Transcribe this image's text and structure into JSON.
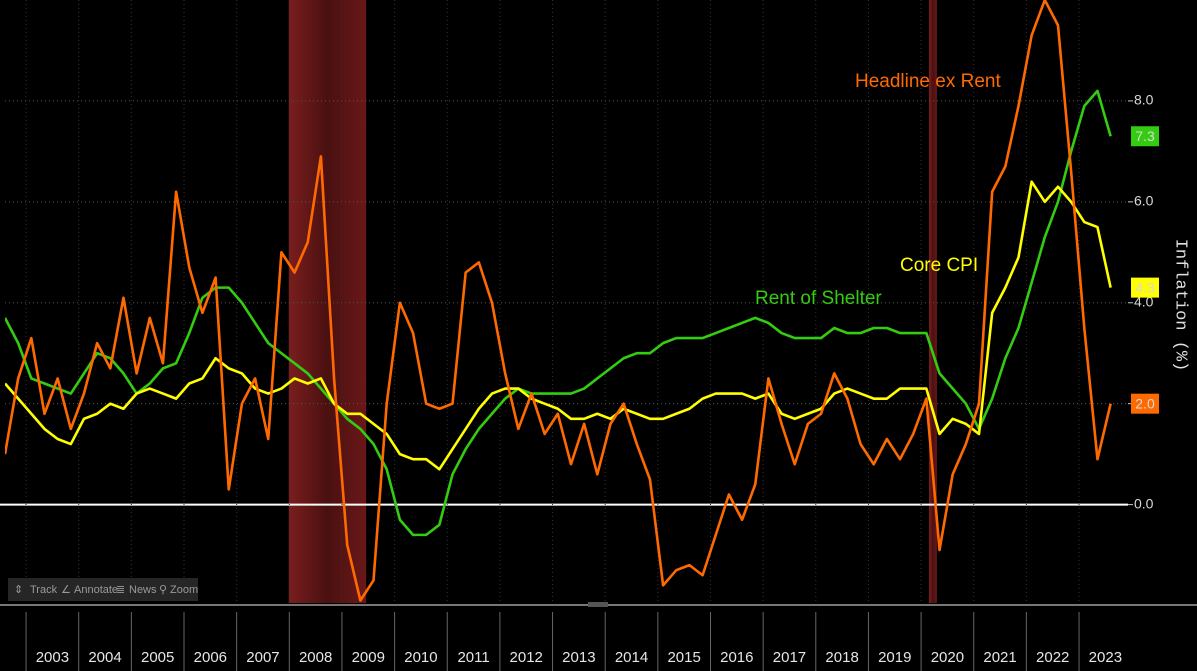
{
  "chart_data": {
    "type": "line",
    "y_axis_label": "Inflation (%)",
    "x": [
      2002.6,
      2002.85,
      2003.1,
      2003.35,
      2003.6,
      2003.85,
      2004.1,
      2004.35,
      2004.6,
      2004.85,
      2005.1,
      2005.35,
      2005.6,
      2005.85,
      2006.1,
      2006.35,
      2006.6,
      2006.85,
      2007.1,
      2007.35,
      2007.6,
      2007.85,
      2008.1,
      2008.35,
      2008.6,
      2008.85,
      2009.1,
      2009.35,
      2009.6,
      2009.85,
      2010.1,
      2010.35,
      2010.6,
      2010.85,
      2011.1,
      2011.35,
      2011.6,
      2011.85,
      2012.1,
      2012.35,
      2012.6,
      2012.85,
      2013.1,
      2013.35,
      2013.6,
      2013.85,
      2014.1,
      2014.35,
      2014.6,
      2014.85,
      2015.1,
      2015.35,
      2015.6,
      2015.85,
      2016.1,
      2016.35,
      2016.6,
      2016.85,
      2017.1,
      2017.35,
      2017.6,
      2017.85,
      2018.1,
      2018.35,
      2018.6,
      2018.85,
      2019.1,
      2019.35,
      2019.6,
      2019.85,
      2020.1,
      2020.35,
      2020.6,
      2020.85,
      2021.1,
      2021.35,
      2021.6,
      2021.85,
      2022.1,
      2022.35,
      2022.6,
      2022.85,
      2023.1,
      2023.35,
      2023.6
    ],
    "series": [
      {
        "name": "Headline ex Rent",
        "color": "#ff6a00",
        "end_label": "2.0",
        "values": [
          1.0,
          2.5,
          3.3,
          1.8,
          2.5,
          1.5,
          2.2,
          3.2,
          2.7,
          4.1,
          2.6,
          3.7,
          2.8,
          6.2,
          4.7,
          3.8,
          4.5,
          0.3,
          2.0,
          2.5,
          1.3,
          5.0,
          4.6,
          5.2,
          6.9,
          2.5,
          -0.8,
          -1.9,
          -1.5,
          2.0,
          4.0,
          3.4,
          2.0,
          1.9,
          2.0,
          4.6,
          4.8,
          4.0,
          2.6,
          1.5,
          2.2,
          1.4,
          1.8,
          0.8,
          1.6,
          0.6,
          1.6,
          2.0,
          1.2,
          0.5,
          -1.6,
          -1.3,
          -1.2,
          -1.4,
          -0.6,
          0.2,
          -0.3,
          0.4,
          2.5,
          1.6,
          0.8,
          1.6,
          1.8,
          2.6,
          2.1,
          1.2,
          0.8,
          1.3,
          0.9,
          1.4,
          2.1,
          -0.9,
          0.6,
          1.2,
          2.0,
          6.2,
          6.7,
          7.9,
          9.3,
          10.0,
          9.5,
          6.6,
          3.5,
          0.9,
          2.0
        ]
      },
      {
        "name": "Core CPI",
        "color": "#ffff00",
        "end_label": "4.3",
        "values": [
          2.4,
          2.1,
          1.8,
          1.5,
          1.3,
          1.2,
          1.7,
          1.8,
          2.0,
          1.9,
          2.2,
          2.3,
          2.2,
          2.1,
          2.4,
          2.5,
          2.9,
          2.7,
          2.6,
          2.3,
          2.2,
          2.3,
          2.5,
          2.4,
          2.5,
          2.0,
          1.8,
          1.8,
          1.6,
          1.4,
          1.0,
          0.9,
          0.9,
          0.7,
          1.1,
          1.5,
          1.9,
          2.2,
          2.3,
          2.3,
          2.1,
          2.0,
          1.9,
          1.7,
          1.7,
          1.8,
          1.7,
          1.9,
          1.8,
          1.7,
          1.7,
          1.8,
          1.9,
          2.1,
          2.2,
          2.2,
          2.2,
          2.1,
          2.2,
          1.8,
          1.7,
          1.8,
          1.9,
          2.2,
          2.3,
          2.2,
          2.1,
          2.1,
          2.3,
          2.3,
          2.3,
          1.4,
          1.7,
          1.6,
          1.4,
          3.8,
          4.3,
          4.9,
          6.4,
          6.0,
          6.3,
          6.0,
          5.6,
          5.5,
          4.3
        ]
      },
      {
        "name": "Rent of Shelter",
        "color": "#33cc11",
        "end_label": "7.3",
        "values": [
          3.7,
          3.2,
          2.5,
          2.4,
          2.3,
          2.2,
          2.6,
          3.0,
          2.9,
          2.6,
          2.2,
          2.4,
          2.7,
          2.8,
          3.4,
          4.1,
          4.3,
          4.3,
          4.0,
          3.6,
          3.2,
          3.0,
          2.8,
          2.6,
          2.3,
          2.0,
          1.7,
          1.5,
          1.2,
          0.7,
          -0.3,
          -0.6,
          -0.6,
          -0.4,
          0.6,
          1.1,
          1.5,
          1.8,
          2.1,
          2.3,
          2.2,
          2.2,
          2.2,
          2.2,
          2.3,
          2.5,
          2.7,
          2.9,
          3.0,
          3.0,
          3.2,
          3.3,
          3.3,
          3.3,
          3.4,
          3.5,
          3.6,
          3.7,
          3.6,
          3.4,
          3.3,
          3.3,
          3.3,
          3.5,
          3.4,
          3.4,
          3.5,
          3.5,
          3.4,
          3.4,
          3.4,
          2.6,
          2.3,
          2.0,
          1.5,
          2.1,
          2.9,
          3.5,
          4.4,
          5.3,
          6.0,
          7.0,
          7.9,
          8.2,
          7.3
        ]
      }
    ],
    "shaded_regions": [
      [
        2007.99,
        2009.46
      ],
      [
        2020.15,
        2020.3
      ]
    ],
    "xlim": [
      2002.6,
      2023.93
    ],
    "xticks": [
      2003,
      2004,
      2005,
      2006,
      2007,
      2008,
      2009,
      2010,
      2011,
      2012,
      2013,
      2014,
      2015,
      2016,
      2017,
      2018,
      2019,
      2020,
      2021,
      2022,
      2023
    ],
    "ylim": [
      -1.95,
      10
    ],
    "yticks": [
      {
        "value": 0,
        "label": "0.0"
      },
      {
        "value": 2,
        "label": "2.0"
      },
      {
        "value": 4,
        "label": "4.0"
      },
      {
        "value": 6,
        "label": "6.0"
      },
      {
        "value": 8,
        "label": "8.0"
      }
    ],
    "grid": true,
    "zero_line": true
  },
  "toolbar": [
    "Track",
    "Annotate",
    "News",
    "Zoom"
  ]
}
